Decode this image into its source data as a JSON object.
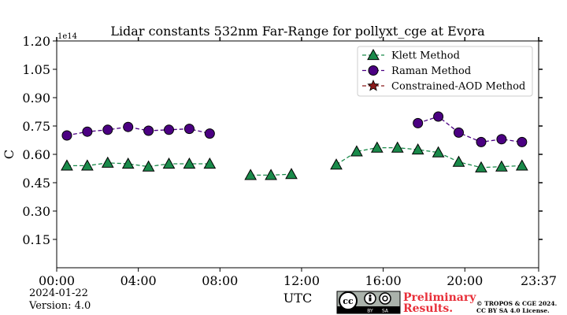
{
  "chart_data": {
    "type": "line",
    "title": "Lidar constants 532nm Far-Range for pollyxt_cge at Evora",
    "xlabel": "UTC",
    "ylabel": "C",
    "y_multiplier": "1e14",
    "xlim": [
      0,
      23.617
    ],
    "ylim": [
      0.0,
      1.2
    ],
    "x_ticks": [
      {
        "v": 0,
        "label": "00:00"
      },
      {
        "v": 4,
        "label": "04:00"
      },
      {
        "v": 8,
        "label": "08:00"
      },
      {
        "v": 12,
        "label": "12:00"
      },
      {
        "v": 16,
        "label": "16:00"
      },
      {
        "v": 20,
        "label": "20:00"
      },
      {
        "v": 23.617,
        "label": "23:37"
      }
    ],
    "y_ticks": [
      {
        "v": 0.15,
        "label": "0.15"
      },
      {
        "v": 0.3,
        "label": "0.30"
      },
      {
        "v": 0.45,
        "label": "0.45"
      },
      {
        "v": 0.6,
        "label": "0.60"
      },
      {
        "v": 0.75,
        "label": "0.75"
      },
      {
        "v": 0.9,
        "label": "0.90"
      },
      {
        "v": 1.05,
        "label": "1.05"
      },
      {
        "v": 1.2,
        "label": "1.20"
      }
    ],
    "legend_position": "top-right",
    "series": [
      {
        "name": "Klett Method",
        "color": "#1a8a4a",
        "marker": "triangle",
        "segments": [
          [
            [
              0.5,
              0.54
            ],
            [
              1.5,
              0.54
            ],
            [
              2.5,
              0.555
            ],
            [
              3.5,
              0.55
            ],
            [
              4.5,
              0.535
            ],
            [
              5.5,
              0.55
            ],
            [
              6.5,
              0.55
            ],
            [
              7.5,
              0.55
            ]
          ],
          [
            [
              9.5,
              0.49
            ],
            [
              10.5,
              0.49
            ],
            [
              11.5,
              0.495
            ]
          ],
          [
            [
              13.7,
              0.545
            ],
            [
              14.7,
              0.615
            ],
            [
              15.7,
              0.635
            ],
            [
              16.7,
              0.635
            ],
            [
              17.7,
              0.625
            ],
            [
              18.7,
              0.61
            ],
            [
              19.7,
              0.56
            ],
            [
              20.8,
              0.53
            ],
            [
              21.8,
              0.535
            ],
            [
              22.8,
              0.54
            ]
          ]
        ]
      },
      {
        "name": "Raman Method",
        "color": "#4b0082",
        "marker": "circle",
        "segments": [
          [
            [
              0.5,
              0.7
            ],
            [
              1.5,
              0.72
            ],
            [
              2.5,
              0.73
            ],
            [
              3.5,
              0.745
            ],
            [
              4.5,
              0.725
            ],
            [
              5.5,
              0.73
            ],
            [
              6.5,
              0.735
            ],
            [
              7.5,
              0.71
            ]
          ],
          [
            [
              17.7,
              0.765
            ],
            [
              18.7,
              0.8
            ],
            [
              19.7,
              0.715
            ],
            [
              20.8,
              0.665
            ],
            [
              21.8,
              0.68
            ],
            [
              22.8,
              0.665
            ]
          ]
        ]
      },
      {
        "name": "Constrained-AOD Method",
        "color": "#8b1a1a",
        "marker": "star",
        "segments": []
      }
    ]
  },
  "footer": {
    "date": "2024-01-22",
    "version": "Version: 4.0",
    "preliminary_line1": "Preliminary",
    "preliminary_line2": "Results.",
    "license_line1": "© TROPOS & CGE 2024.",
    "license_line2": "CC BY SA 4.0 License.",
    "badge_cc": "cc",
    "badge_by": "BY",
    "badge_sa": "SA"
  }
}
